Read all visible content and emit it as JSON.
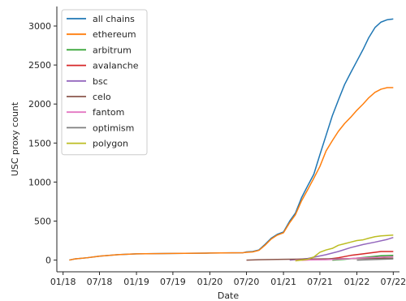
{
  "chart_data": {
    "type": "line",
    "xlabel": "Date",
    "ylabel": "USC proxy count",
    "xlim": [
      "2017-12-01",
      "2022-08-01"
    ],
    "ylim": [
      -150,
      3250
    ],
    "xticks": [
      {
        "date": "2018-01-01",
        "label": "01/18"
      },
      {
        "date": "2018-07-01",
        "label": "07/18"
      },
      {
        "date": "2019-01-01",
        "label": "01/19"
      },
      {
        "date": "2019-07-01",
        "label": "07/19"
      },
      {
        "date": "2020-01-01",
        "label": "01/20"
      },
      {
        "date": "2020-07-01",
        "label": "07/20"
      },
      {
        "date": "2021-01-01",
        "label": "01/21"
      },
      {
        "date": "2021-07-01",
        "label": "07/21"
      },
      {
        "date": "2022-01-01",
        "label": "01/22"
      },
      {
        "date": "2022-07-01",
        "label": "07/22"
      }
    ],
    "yticks": [
      0,
      500,
      1000,
      1500,
      2000,
      2500,
      3000
    ],
    "legend_position": "top-left",
    "grid": false,
    "series": [
      {
        "name": "all chains",
        "color": "#1f77b4",
        "points": [
          [
            "2018-02-01",
            0
          ],
          [
            "2018-03-01",
            15
          ],
          [
            "2018-05-01",
            30
          ],
          [
            "2018-07-01",
            50
          ],
          [
            "2018-10-01",
            70
          ],
          [
            "2019-01-01",
            80
          ],
          [
            "2019-07-01",
            85
          ],
          [
            "2020-01-01",
            90
          ],
          [
            "2020-06-15",
            95
          ],
          [
            "2020-07-01",
            105
          ],
          [
            "2020-08-01",
            110
          ],
          [
            "2020-09-01",
            130
          ],
          [
            "2020-10-01",
            200
          ],
          [
            "2020-11-01",
            280
          ],
          [
            "2020-12-01",
            330
          ],
          [
            "2021-01-01",
            360
          ],
          [
            "2021-02-01",
            500
          ],
          [
            "2021-03-01",
            600
          ],
          [
            "2021-04-01",
            800
          ],
          [
            "2021-05-01",
            950
          ],
          [
            "2021-06-01",
            1100
          ],
          [
            "2021-07-01",
            1350
          ],
          [
            "2021-08-01",
            1600
          ],
          [
            "2021-09-01",
            1850
          ],
          [
            "2021-10-01",
            2050
          ],
          [
            "2021-11-01",
            2250
          ],
          [
            "2021-12-01",
            2400
          ],
          [
            "2022-01-01",
            2550
          ],
          [
            "2022-02-01",
            2700
          ],
          [
            "2022-03-01",
            2850
          ],
          [
            "2022-04-01",
            2980
          ],
          [
            "2022-05-01",
            3050
          ],
          [
            "2022-06-01",
            3080
          ],
          [
            "2022-07-01",
            3090
          ]
        ]
      },
      {
        "name": "ethereum",
        "color": "#ff7f0e",
        "points": [
          [
            "2018-02-01",
            0
          ],
          [
            "2018-03-01",
            15
          ],
          [
            "2018-05-01",
            30
          ],
          [
            "2018-07-01",
            50
          ],
          [
            "2018-10-01",
            70
          ],
          [
            "2019-01-01",
            80
          ],
          [
            "2019-07-01",
            85
          ],
          [
            "2020-01-01",
            90
          ],
          [
            "2020-06-15",
            95
          ],
          [
            "2020-07-01",
            100
          ],
          [
            "2020-08-01",
            105
          ],
          [
            "2020-09-01",
            125
          ],
          [
            "2020-10-01",
            190
          ],
          [
            "2020-11-01",
            270
          ],
          [
            "2020-12-01",
            320
          ],
          [
            "2021-01-01",
            350
          ],
          [
            "2021-02-01",
            480
          ],
          [
            "2021-03-01",
            580
          ],
          [
            "2021-04-01",
            760
          ],
          [
            "2021-05-01",
            900
          ],
          [
            "2021-06-01",
            1050
          ],
          [
            "2021-07-01",
            1200
          ],
          [
            "2021-08-01",
            1400
          ],
          [
            "2021-09-01",
            1530
          ],
          [
            "2021-10-01",
            1650
          ],
          [
            "2021-11-01",
            1750
          ],
          [
            "2021-12-01",
            1830
          ],
          [
            "2022-01-01",
            1920
          ],
          [
            "2022-02-01",
            2000
          ],
          [
            "2022-03-01",
            2080
          ],
          [
            "2022-04-01",
            2150
          ],
          [
            "2022-05-01",
            2190
          ],
          [
            "2022-06-01",
            2210
          ],
          [
            "2022-07-01",
            2210
          ]
        ]
      },
      {
        "name": "arbitrum",
        "color": "#2ca02c",
        "points": [
          [
            "2021-09-01",
            0
          ],
          [
            "2021-11-01",
            10
          ],
          [
            "2022-01-01",
            25
          ],
          [
            "2022-03-01",
            40
          ],
          [
            "2022-05-01",
            55
          ],
          [
            "2022-07-01",
            60
          ]
        ]
      },
      {
        "name": "avalanche",
        "color": "#d62728",
        "points": [
          [
            "2021-04-01",
            0
          ],
          [
            "2021-08-01",
            10
          ],
          [
            "2021-10-01",
            30
          ],
          [
            "2021-12-01",
            60
          ],
          [
            "2022-02-01",
            80
          ],
          [
            "2022-04-01",
            100
          ],
          [
            "2022-05-01",
            110
          ],
          [
            "2022-07-01",
            110
          ]
        ]
      },
      {
        "name": "bsc",
        "color": "#9467bd",
        "points": [
          [
            "2021-02-01",
            0
          ],
          [
            "2021-05-01",
            20
          ],
          [
            "2021-08-01",
            70
          ],
          [
            "2021-10-01",
            110
          ],
          [
            "2021-12-01",
            160
          ],
          [
            "2022-02-01",
            200
          ],
          [
            "2022-04-01",
            230
          ],
          [
            "2022-06-01",
            265
          ],
          [
            "2022-07-01",
            290
          ]
        ]
      },
      {
        "name": "celo",
        "color": "#8c564b",
        "points": [
          [
            "2020-07-01",
            0
          ],
          [
            "2020-09-01",
            5
          ],
          [
            "2021-01-01",
            10
          ],
          [
            "2021-07-01",
            15
          ],
          [
            "2022-01-01",
            20
          ],
          [
            "2022-07-01",
            25
          ]
        ]
      },
      {
        "name": "fantom",
        "color": "#e377c2",
        "points": [
          [
            "2021-03-01",
            0
          ],
          [
            "2021-08-01",
            5
          ],
          [
            "2021-11-01",
            15
          ],
          [
            "2022-01-01",
            25
          ],
          [
            "2022-04-01",
            35
          ],
          [
            "2022-07-01",
            45
          ]
        ]
      },
      {
        "name": "optimism",
        "color": "#7f7f7f",
        "points": [
          [
            "2022-01-01",
            0
          ],
          [
            "2022-03-01",
            5
          ],
          [
            "2022-05-01",
            10
          ],
          [
            "2022-07-01",
            15
          ]
        ]
      },
      {
        "name": "polygon",
        "color": "#bcbd22",
        "points": [
          [
            "2021-03-01",
            -10
          ],
          [
            "2021-05-01",
            10
          ],
          [
            "2021-06-01",
            40
          ],
          [
            "2021-07-01",
            100
          ],
          [
            "2021-08-01",
            130
          ],
          [
            "2021-09-01",
            150
          ],
          [
            "2021-10-01",
            190
          ],
          [
            "2021-11-01",
            210
          ],
          [
            "2021-12-01",
            230
          ],
          [
            "2022-01-01",
            250
          ],
          [
            "2022-02-01",
            260
          ],
          [
            "2022-03-01",
            280
          ],
          [
            "2022-04-01",
            300
          ],
          [
            "2022-05-01",
            310
          ],
          [
            "2022-07-01",
            320
          ]
        ]
      }
    ]
  }
}
